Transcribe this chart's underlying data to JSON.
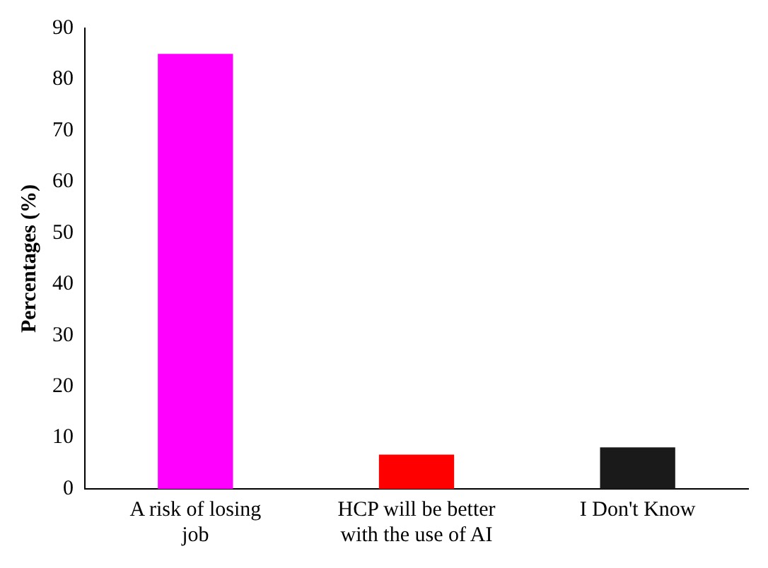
{
  "chart_data": {
    "type": "bar",
    "ylabel": "Percentages (%)",
    "categories": [
      "A risk of losing job",
      "HCP will be better with the use of AI",
      "I Don't Know"
    ],
    "values": [
      85,
      6.7,
      8.1
    ],
    "colors": [
      "#ff00ff",
      "#ff0000",
      "#1a1a1a"
    ],
    "ylim": [
      0,
      90
    ],
    "yticks": [
      0,
      10,
      20,
      30,
      40,
      50,
      60,
      70,
      80,
      90
    ],
    "grid": false,
    "legend": false
  }
}
